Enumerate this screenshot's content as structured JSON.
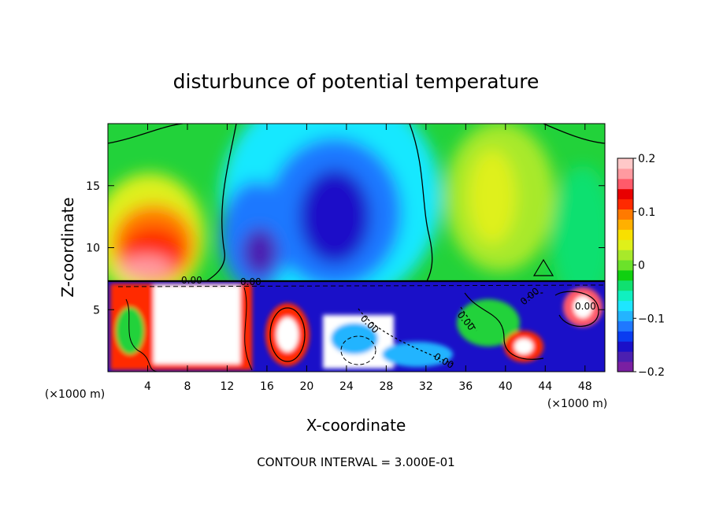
{
  "chart_data": {
    "type": "heatmap",
    "title": "disturbunce of potential temperature",
    "xlabel": "X-coordinate",
    "ylabel": "Z-coordinate",
    "x_unit": "(×1000 m)",
    "x_unit_right": "(×1000 m)",
    "xlim": [
      0,
      50
    ],
    "ylim": [
      0,
      20
    ],
    "x_ticks": [
      4,
      8,
      12,
      16,
      20,
      24,
      28,
      32,
      36,
      40,
      44,
      48
    ],
    "y_ticks": [
      5,
      10,
      15
    ],
    "x_tick_labels": [
      "4",
      "8",
      "12",
      "16",
      "20",
      "24",
      "28",
      "32",
      "36",
      "40",
      "44",
      "48"
    ],
    "y_tick_labels": [
      "5",
      "10",
      "15"
    ],
    "colorbar": {
      "range": [
        -0.2,
        0.2
      ],
      "tick_labels": [
        "0.2",
        "0.1",
        "0",
        "−0.1",
        "−0.2"
      ],
      "tick_values": [
        0.2,
        0.1,
        0,
        -0.1,
        -0.2
      ],
      "colors": [
        "#7a1fa2",
        "#4b1fb0",
        "#1a10c8",
        "#0a3cf0",
        "#1f78ff",
        "#23b4ff",
        "#1ee6ff",
        "#10f0c0",
        "#10e070",
        "#10d010",
        "#6be22a",
        "#a8e92a",
        "#dff01a",
        "#f8e000",
        "#ffb000",
        "#ff7a00",
        "#ff2a00",
        "#e80000",
        "#ff5a6a",
        "#ff9aa0",
        "#ffc8c8"
      ]
    },
    "contour_labels": [
      "0.00",
      "0.00",
      "0.00",
      "0.00",
      "0.00",
      "0.00",
      "0.00"
    ],
    "footer": "CONTOUR INTERVAL = 3.000E-01"
  }
}
